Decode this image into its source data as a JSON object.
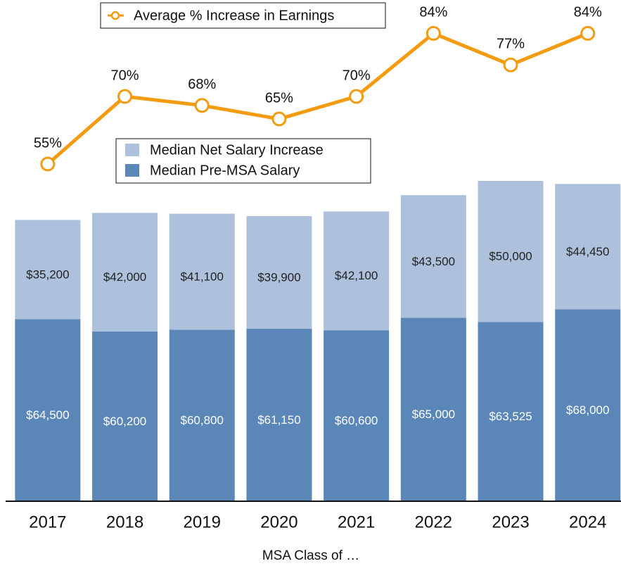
{
  "chart_data": {
    "type": "bar",
    "stacked": true,
    "x_label": "MSA Class of …",
    "categories": [
      "2017",
      "2018",
      "2019",
      "2020",
      "2021",
      "2022",
      "2023",
      "2024"
    ],
    "series": [
      {
        "name": "Median Pre-MSA Salary",
        "color": "#5b87b8",
        "values": [
          64500,
          60200,
          60800,
          61150,
          60600,
          65000,
          63525,
          68000
        ],
        "value_labels": [
          "$64,500",
          "$60,200",
          "$60,800",
          "$61,150",
          "$60,600",
          "$65,000",
          "$63,525",
          "$68,000"
        ]
      },
      {
        "name": "Median Net Salary Increase",
        "color": "#adc1dc",
        "values": [
          35200,
          42000,
          41100,
          39900,
          42100,
          43500,
          50000,
          44450
        ],
        "value_labels": [
          "$35,200",
          "$42,000",
          "$41,100",
          "$39,900",
          "$42,100",
          "$43,500",
          "$50,000",
          "$44,450"
        ]
      },
      {
        "name": "Average % Increase in Earnings",
        "type": "line",
        "color": "#f39c12",
        "values": [
          55,
          70,
          68,
          65,
          70,
          84,
          77,
          84
        ],
        "value_labels": [
          "55%",
          "70%",
          "68%",
          "65%",
          "70%",
          "84%",
          "77%",
          "84%"
        ]
      }
    ]
  }
}
